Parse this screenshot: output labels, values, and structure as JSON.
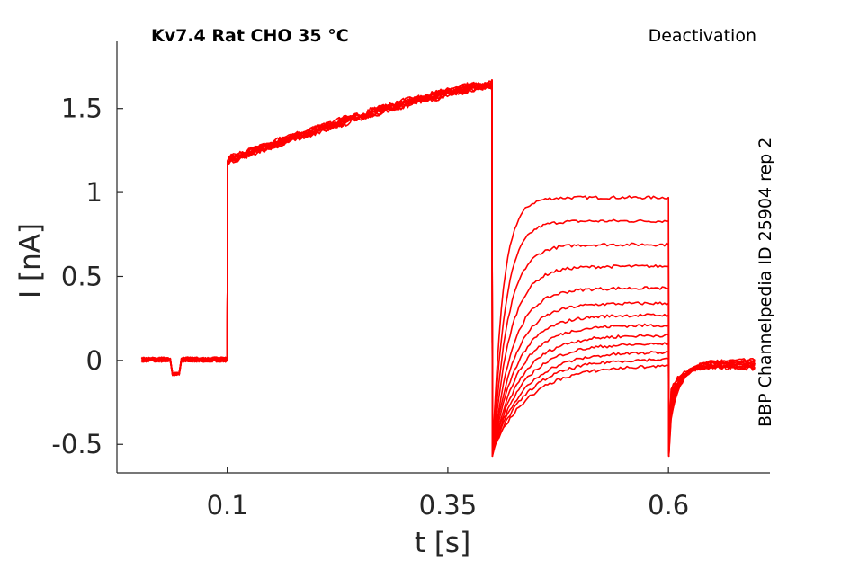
{
  "chart_data": {
    "type": "line",
    "title_left": "Kv7.4  Rat  CHO  35 °C",
    "title_right": "Deactivation",
    "side_label": "BBP Channelpedia ID 25904 rep 2",
    "xlabel": "t [s]",
    "ylabel": "I [nA]",
    "xlim": [
      -0.025,
      0.715
    ],
    "ylim": [
      -0.67,
      1.9
    ],
    "x_ticks": [
      0.1,
      0.35,
      0.6
    ],
    "x_tick_labels": [
      "0.1",
      "0.35",
      "0.6"
    ],
    "y_ticks": [
      -0.5,
      0,
      0.5,
      1,
      1.5
    ],
    "y_tick_labels": [
      "-0.5",
      "0",
      "0.5",
      "1",
      "1.5"
    ],
    "grid": false,
    "line_color": "#ff0000",
    "protocol": {
      "baseline_start": 0.003,
      "step_on": 0.1,
      "step_off": 0.4,
      "tail_off": 0.6,
      "end": 0.7,
      "activation_start_level": 1.19,
      "activation_end_level": 1.65,
      "baseline_dip": {
        "start": 0.038,
        "end": 0.048,
        "level": -0.08
      }
    },
    "series": [
      {
        "tail_level": 0.97
      },
      {
        "tail_level": 0.83
      },
      {
        "tail_level": 0.69
      },
      {
        "tail_level": 0.56
      },
      {
        "tail_level": 0.43
      },
      {
        "tail_level": 0.34
      },
      {
        "tail_level": 0.27
      },
      {
        "tail_level": 0.21
      },
      {
        "tail_level": 0.15
      },
      {
        "tail_level": 0.1
      },
      {
        "tail_level": 0.05
      },
      {
        "tail_level": 0.01
      },
      {
        "tail_level": -0.03
      }
    ]
  }
}
